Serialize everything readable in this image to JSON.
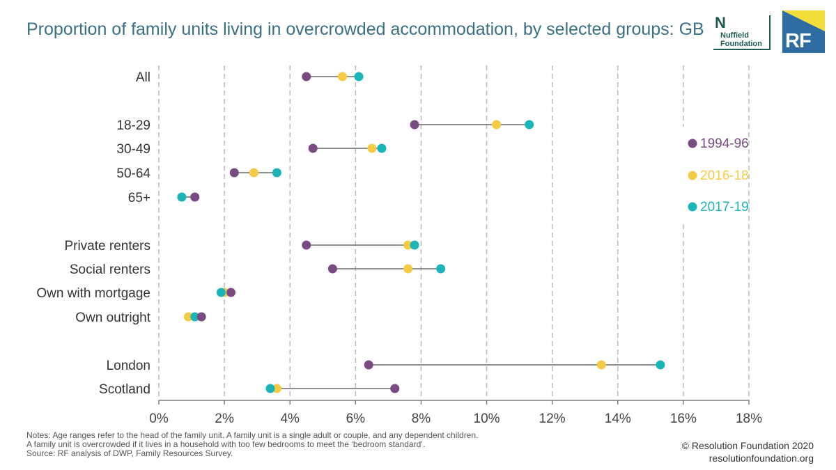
{
  "title": "Proportion of family units living in overcrowded accommodation, by selected groups: GB",
  "logos": {
    "nuffield": {
      "mark": "N",
      "line1": "Nuffield",
      "line2": "Foundation"
    },
    "rf": "RF"
  },
  "notes": [
    "Notes: Age ranges refer to the head of the family unit. A family unit is a single adult or couple, and any dependent children.",
    "A family unit is overcrowded if it lives in a household with too few bedrooms to meet the ‘bedroom standard’.",
    "Source: RF analysis of DWP, Family Resources Survey."
  ],
  "credit": {
    "line1": "© Resolution Foundation 2020",
    "line2": "resolutionfoundation.org"
  },
  "chart_data": {
    "type": "scatter",
    "subtype": "dumbbell",
    "title": "Proportion of family units living in overcrowded accommodation, by selected groups: GB",
    "xlim": [
      0,
      18
    ],
    "x_ticks": [
      0,
      2,
      4,
      6,
      8,
      10,
      12,
      14,
      16,
      18
    ],
    "x_tick_labels": [
      "0%",
      "2%",
      "4%",
      "6%",
      "8%",
      "10%",
      "12%",
      "14%",
      "16%",
      "18%"
    ],
    "grid": "vertical dashed",
    "legend_position": "right",
    "categories": [
      "All",
      "18-29",
      "30-49",
      "50-64",
      "65+",
      "Private renters",
      "Social renters",
      "Own with mortgage",
      "Own outright",
      "London",
      "Scotland"
    ],
    "series": [
      {
        "name": "1994-96",
        "color": "#7a4a83",
        "values": [
          4.5,
          7.8,
          4.7,
          2.3,
          1.1,
          4.5,
          5.3,
          2.2,
          1.3,
          6.4,
          7.2
        ]
      },
      {
        "name": "2016-18",
        "color": "#f5cb45",
        "values": [
          5.6,
          10.3,
          6.5,
          2.9,
          0.7,
          7.6,
          7.6,
          2.0,
          0.9,
          13.5,
          3.6
        ]
      },
      {
        "name": "2017-19",
        "color": "#1ab5b9",
        "values": [
          6.1,
          11.3,
          6.8,
          3.6,
          0.7,
          7.8,
          8.6,
          1.9,
          1.1,
          15.3,
          3.4
        ]
      }
    ]
  }
}
